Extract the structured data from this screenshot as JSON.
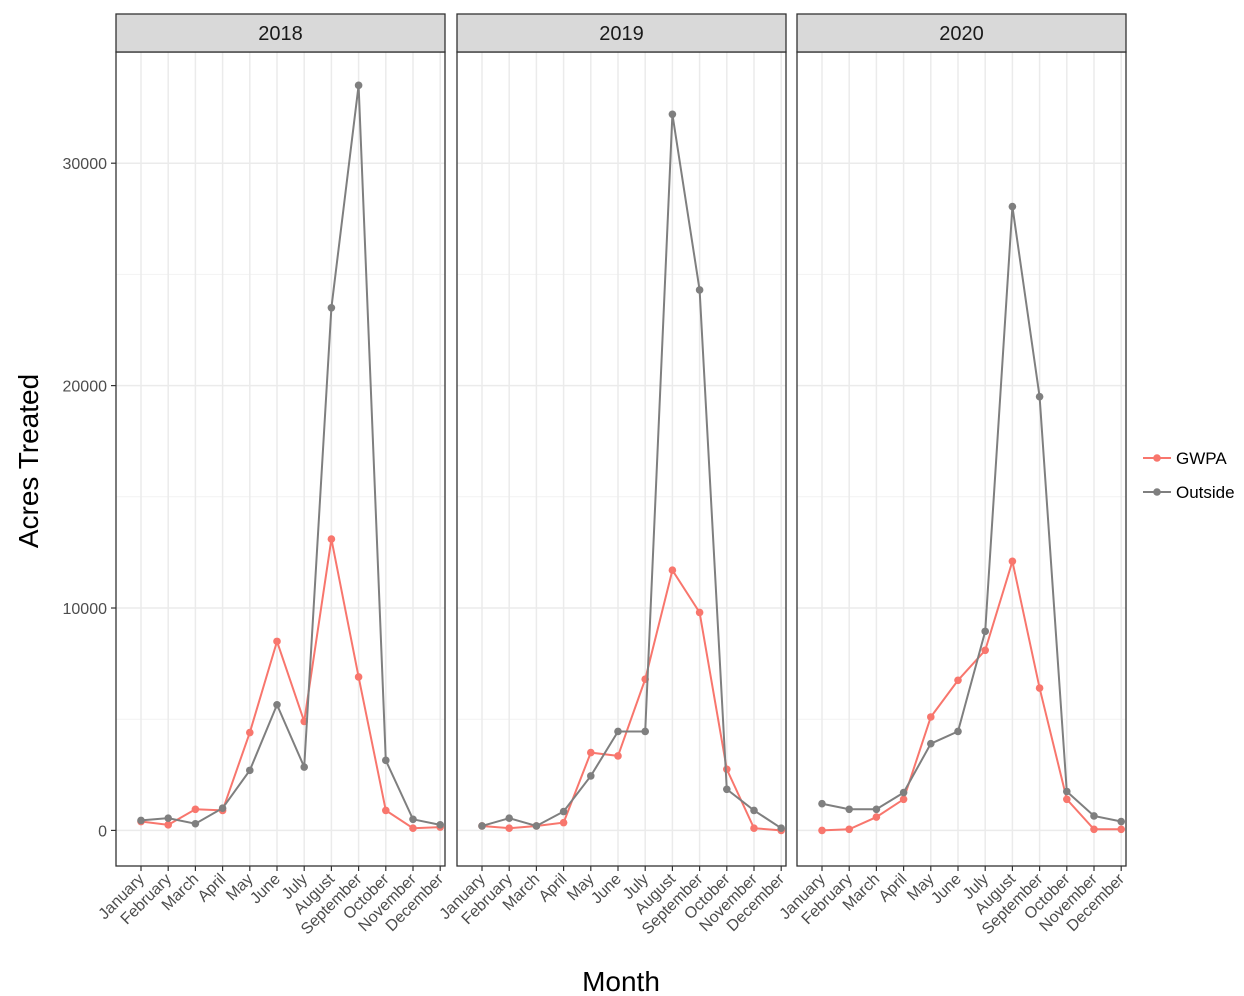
{
  "chart_data": {
    "type": "line",
    "xlabel": "Month",
    "ylabel": "Acres Treated",
    "ylim": [
      -1600,
      35000
    ],
    "yticks": [
      0,
      10000,
      20000,
      30000
    ],
    "grid": true,
    "legend_position": "right",
    "categories": [
      "January",
      "February",
      "March",
      "April",
      "May",
      "June",
      "July",
      "August",
      "September",
      "October",
      "November",
      "December"
    ],
    "colors": {
      "GWPA": "#F8766D",
      "Outside": "#7F7F7F"
    },
    "legend": [
      "GWPA",
      "Outside"
    ],
    "panels": [
      {
        "title": "2018",
        "series": [
          {
            "name": "GWPA",
            "values": [
              400,
              250,
              950,
              900,
              4400,
              8500,
              4900,
              13100,
              6900,
              900,
              100,
              150
            ]
          },
          {
            "name": "Outside",
            "values": [
              450,
              550,
              300,
              1000,
              2700,
              5650,
              2850,
              23500,
              33500,
              3150,
              500,
              250
            ]
          }
        ]
      },
      {
        "title": "2019",
        "series": [
          {
            "name": "GWPA",
            "values": [
              200,
              100,
              200,
              350,
              3500,
              3350,
              6800,
              11700,
              9800,
              2750,
              100,
              0
            ]
          },
          {
            "name": "Outside",
            "values": [
              200,
              550,
              200,
              850,
              2450,
              4450,
              4450,
              32200,
              24300,
              1850,
              900,
              100
            ]
          }
        ]
      },
      {
        "title": "2020",
        "series": [
          {
            "name": "GWPA",
            "values": [
              0,
              50,
              600,
              1400,
              5100,
              6750,
              8100,
              12100,
              6400,
              1400,
              50,
              50
            ]
          },
          {
            "name": "Outside",
            "values": [
              1200,
              950,
              950,
              1700,
              3900,
              4450,
              8950,
              28050,
              19500,
              1750,
              650,
              400
            ]
          }
        ]
      }
    ]
  }
}
